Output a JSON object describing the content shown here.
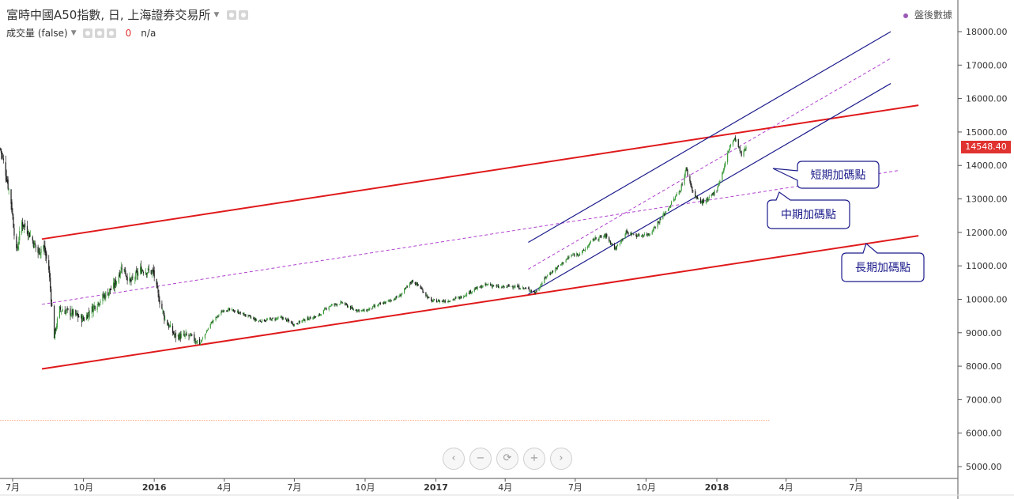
{
  "legend": {
    "title": "富時中國A50指數, 日, 上海證券交易所",
    "volume_label": "成交量 (false)",
    "volume_value": "0",
    "volume_na": "n/a"
  },
  "after_hours_label": "盤後數據",
  "last_price": "14548.40",
  "colors": {
    "up": "#3d9b3d",
    "down": "#1a1a1a",
    "long_channel": "#e0191b",
    "short_channel": "#1c1c8c",
    "dashed": "#b040d0",
    "baseline": "#ff7b3a",
    "price_tag": "#e0322f"
  },
  "callouts": [
    {
      "text": "短期加碼點"
    },
    {
      "text": "中期加碼點"
    },
    {
      "text": "長期加碼點"
    }
  ],
  "nav_icons": [
    "chevron-left-icon",
    "zoom-out-icon",
    "reset-icon",
    "zoom-in-icon",
    "chevron-right-icon"
  ],
  "chart_data": {
    "type": "candlestick",
    "title": "富時中國A50指數, 日, 上海證券交易所",
    "y_ticks": [
      5000,
      6000,
      7000,
      8000,
      9000,
      10000,
      11000,
      12000,
      13000,
      14000,
      15000,
      16000,
      17000,
      18000
    ],
    "y_tick_labels": [
      "5000.00",
      "6000.00",
      "7000.00",
      "8000.00",
      "9000.00",
      "10000.00",
      "11000.00",
      "12000.00",
      "13000.00",
      "14000.00",
      "15000.00",
      "16000.00",
      "17000.00",
      "18000.00"
    ],
    "ylim": [
      4700,
      18400
    ],
    "x_ticks": [
      {
        "label": "7月",
        "date": "2015-07-01"
      },
      {
        "label": "10月",
        "date": "2015-10-01"
      },
      {
        "label": "2016",
        "date": "2016-01-01"
      },
      {
        "label": "4月",
        "date": "2016-04-01"
      },
      {
        "label": "7月",
        "date": "2016-07-01"
      },
      {
        "label": "10月",
        "date": "2016-10-01"
      },
      {
        "label": "2017",
        "date": "2017-01-01"
      },
      {
        "label": "4月",
        "date": "2017-04-01"
      },
      {
        "label": "7月",
        "date": "2017-07-01"
      },
      {
        "label": "10月",
        "date": "2017-10-01"
      },
      {
        "label": "2018",
        "date": "2018-01-01"
      },
      {
        "label": "4月",
        "date": "2018-04-01"
      },
      {
        "label": "7月",
        "date": "2018-07-01"
      }
    ],
    "xlim": [
      "2015-06-15",
      "2018-09-30"
    ],
    "price_path": [
      [
        "2015-06-15",
        14500
      ],
      [
        "2015-06-22",
        13800
      ],
      [
        "2015-06-29",
        12900
      ],
      [
        "2015-07-06",
        11400
      ],
      [
        "2015-07-13",
        12300
      ],
      [
        "2015-07-22",
        12000
      ],
      [
        "2015-08-03",
        11400
      ],
      [
        "2015-08-10",
        11600
      ],
      [
        "2015-08-17",
        10900
      ],
      [
        "2015-08-24",
        8900
      ],
      [
        "2015-08-31",
        9700
      ],
      [
        "2015-09-15",
        9600
      ],
      [
        "2015-10-01",
        9400
      ],
      [
        "2015-10-15",
        9800
      ],
      [
        "2015-10-28",
        10100
      ],
      [
        "2015-11-10",
        10400
      ],
      [
        "2015-11-20",
        11000
      ],
      [
        "2015-12-01",
        10500
      ],
      [
        "2015-12-15",
        10900
      ],
      [
        "2015-12-31",
        10800
      ],
      [
        "2016-01-05",
        10200
      ],
      [
        "2016-01-15",
        9400
      ],
      [
        "2016-01-28",
        8900
      ],
      [
        "2016-02-15",
        8900
      ],
      [
        "2016-03-01",
        8700
      ],
      [
        "2016-03-15",
        9300
      ],
      [
        "2016-04-01",
        9700
      ],
      [
        "2016-04-15",
        9650
      ],
      [
        "2016-05-01",
        9500
      ],
      [
        "2016-05-15",
        9350
      ],
      [
        "2016-06-01",
        9400
      ],
      [
        "2016-06-15",
        9450
      ],
      [
        "2016-07-01",
        9250
      ],
      [
        "2016-07-15",
        9400
      ],
      [
        "2016-08-01",
        9500
      ],
      [
        "2016-08-15",
        9800
      ],
      [
        "2016-09-01",
        9900
      ],
      [
        "2016-09-15",
        9700
      ],
      [
        "2016-10-01",
        9650
      ],
      [
        "2016-10-15",
        9800
      ],
      [
        "2016-11-01",
        9950
      ],
      [
        "2016-11-15",
        10100
      ],
      [
        "2016-12-01",
        10550
      ],
      [
        "2016-12-10",
        10400
      ],
      [
        "2016-12-25",
        9950
      ],
      [
        "2017-01-15",
        9950
      ],
      [
        "2017-02-01",
        10050
      ],
      [
        "2017-02-20",
        10300
      ],
      [
        "2017-03-10",
        10450
      ],
      [
        "2017-03-25",
        10350
      ],
      [
        "2017-04-10",
        10400
      ],
      [
        "2017-05-01",
        10300
      ],
      [
        "2017-05-10",
        10200
      ],
      [
        "2017-05-25",
        10700
      ],
      [
        "2017-06-10",
        11000
      ],
      [
        "2017-06-25",
        11300
      ],
      [
        "2017-07-10",
        11400
      ],
      [
        "2017-07-25",
        11800
      ],
      [
        "2017-08-10",
        11900
      ],
      [
        "2017-08-22",
        11500
      ],
      [
        "2017-09-05",
        12000
      ],
      [
        "2017-09-20",
        11900
      ],
      [
        "2017-10-05",
        11950
      ],
      [
        "2017-10-20",
        12400
      ],
      [
        "2017-11-01",
        12800
      ],
      [
        "2017-11-15",
        13300
      ],
      [
        "2017-11-22",
        13900
      ],
      [
        "2017-12-01",
        13200
      ],
      [
        "2017-12-10",
        12900
      ],
      [
        "2017-12-20",
        12950
      ],
      [
        "2018-01-01",
        13300
      ],
      [
        "2018-01-10",
        13900
      ],
      [
        "2018-01-18",
        14600
      ],
      [
        "2018-01-25",
        14800
      ],
      [
        "2018-02-02",
        14300
      ],
      [
        "2018-02-08",
        14548
      ]
    ],
    "overlays": [
      {
        "name": "long_upper",
        "style": "red-solid",
        "from": [
          "2015-08-08",
          11800
        ],
        "to": [
          "2018-09-20",
          15800
        ]
      },
      {
        "name": "long_lower",
        "style": "red-solid",
        "from": [
          "2015-08-08",
          7920
        ],
        "to": [
          "2018-09-20",
          11900
        ]
      },
      {
        "name": "mid_dashed",
        "style": "purple-dashed",
        "from": [
          "2015-08-08",
          9850
        ],
        "to": [
          "2018-08-25",
          13850
        ]
      },
      {
        "name": "short_upper",
        "style": "blue-solid",
        "from": [
          "2017-05-01",
          11700
        ],
        "to": [
          "2018-08-15",
          18000
        ]
      },
      {
        "name": "short_lower",
        "style": "blue-solid",
        "from": [
          "2017-05-01",
          10150
        ],
        "to": [
          "2018-08-15",
          16450
        ]
      },
      {
        "name": "short_mid",
        "style": "purple-dashed",
        "from": [
          "2017-05-01",
          10900
        ],
        "to": [
          "2018-08-15",
          17200
        ]
      },
      {
        "name": "baseline",
        "style": "orange-dotted",
        "from": [
          "2015-06-15",
          6380
        ],
        "to": [
          "2018-03-10",
          6380
        ]
      }
    ]
  }
}
